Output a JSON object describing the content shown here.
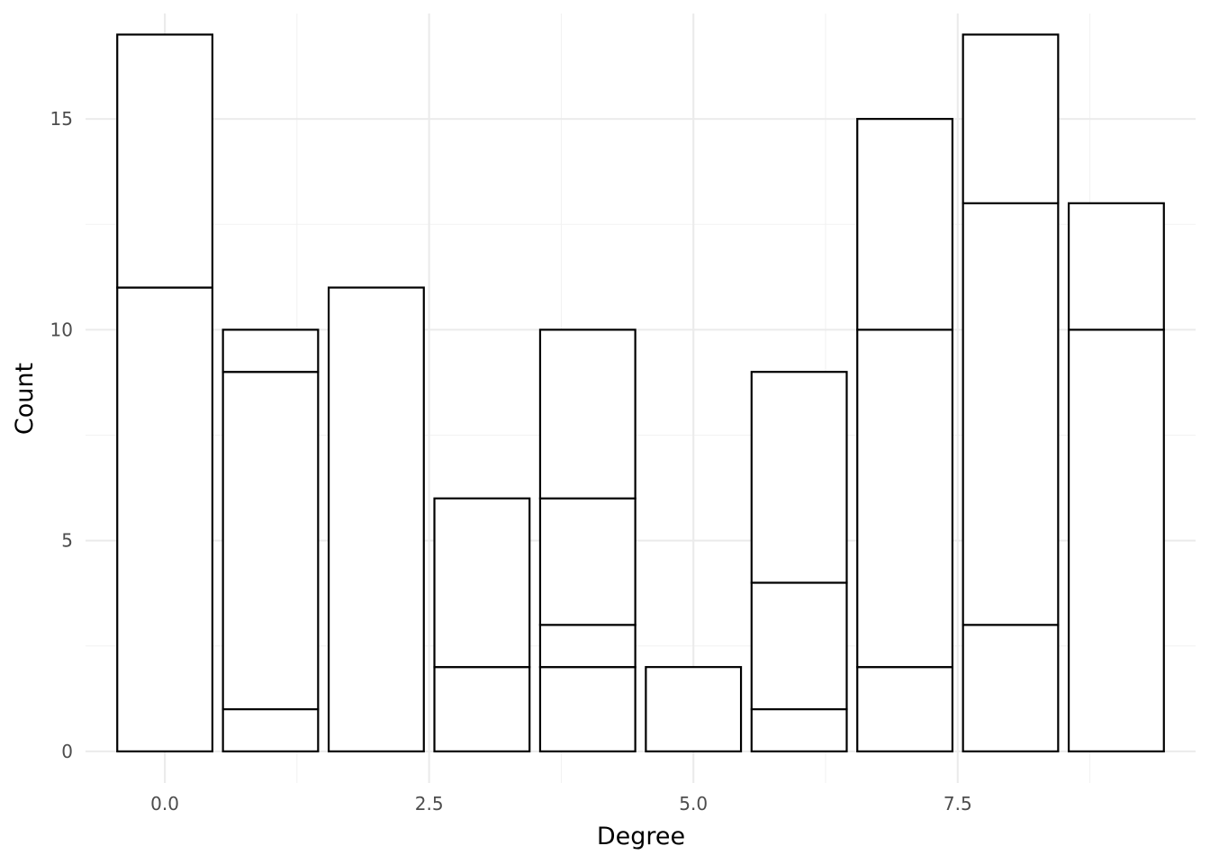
{
  "chart_data": {
    "type": "bar",
    "stacked": true,
    "xlabel": "Degree",
    "ylabel": "Count",
    "xlim": [
      -0.75,
      9.75
    ],
    "ylim": [
      -0.75,
      17.5
    ],
    "x_breaks": [
      0,
      2.5,
      5,
      7.5
    ],
    "x_tick_labels": [
      "0.0",
      "2.5",
      "5.0",
      "7.5"
    ],
    "x_minor_breaks": [
      1.25,
      3.75,
      6.25,
      8.75
    ],
    "y_breaks": [
      0,
      5,
      10,
      15
    ],
    "y_tick_labels": [
      "0",
      "5",
      "10",
      "15"
    ],
    "y_minor_breaks": [
      2.5,
      7.5,
      12.5
    ],
    "bar_width": 0.9,
    "grid": true,
    "legend": "none",
    "fill_color": "#ffffff",
    "outline_color": "#000000",
    "bars": [
      {
        "x": 0,
        "segments": [
          11,
          6
        ],
        "total": 17
      },
      {
        "x": 1,
        "segments": [
          1,
          8,
          1
        ],
        "total": 10
      },
      {
        "x": 2,
        "segments": [
          11
        ],
        "total": 11
      },
      {
        "x": 3,
        "segments": [
          2,
          4
        ],
        "total": 6
      },
      {
        "x": 4,
        "segments": [
          2,
          1,
          3,
          4
        ],
        "total": 10
      },
      {
        "x": 5,
        "segments": [
          2
        ],
        "total": 2
      },
      {
        "x": 6,
        "segments": [
          1,
          3,
          5
        ],
        "total": 9
      },
      {
        "x": 7,
        "segments": [
          2,
          8,
          5
        ],
        "total": 15
      },
      {
        "x": 8,
        "segments": [
          3,
          10,
          4
        ],
        "total": 17
      },
      {
        "x": 9,
        "segments": [
          10,
          3
        ],
        "total": 13
      }
    ]
  }
}
